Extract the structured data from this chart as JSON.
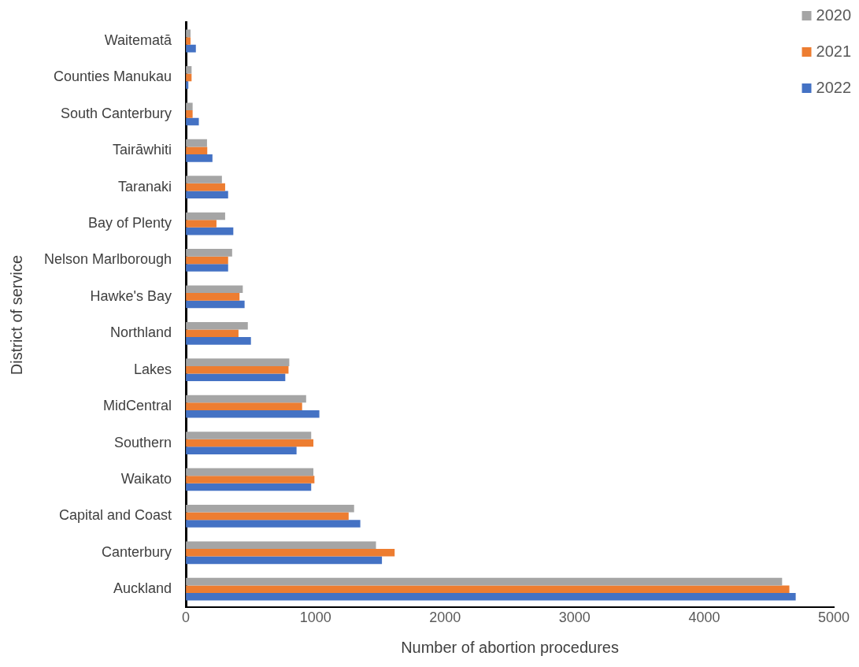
{
  "chart_data": {
    "type": "bar",
    "orientation": "horizontal",
    "xlabel": "Number of abortion procedures",
    "ylabel": "District of service",
    "categories": [
      "Waitematā",
      "Counties Manukau",
      "South Canterbury",
      "Tairāwhiti",
      "Taranaki",
      "Bay of Plenty",
      "Nelson Marlborough",
      "Hawke's Bay",
      "Northland",
      "Lakes",
      "MidCentral",
      "Southern",
      "Waikato",
      "Capital and Coast",
      "Canterbury",
      "Auckland"
    ],
    "series": [
      {
        "name": "2020",
        "color": "#a5a5a5",
        "values": [
          36,
          44,
          52,
          163,
          278,
          303,
          357,
          439,
          478,
          798,
          928,
          967,
          984,
          1298,
          1467,
          4601
        ]
      },
      {
        "name": "2021",
        "color": "#ed7d31",
        "values": [
          36,
          44,
          52,
          165,
          303,
          236,
          326,
          414,
          406,
          792,
          897,
          984,
          992,
          1256,
          1611,
          4657
        ]
      },
      {
        "name": "2022",
        "color": "#4472c4",
        "values": [
          77,
          19,
          100,
          205,
          326,
          366,
          326,
          453,
          502,
          767,
          1030,
          854,
          967,
          1346,
          1513,
          4706
        ]
      }
    ],
    "xlim": [
      0,
      5000
    ],
    "xticks": [
      0,
      1000,
      2000,
      3000,
      4000,
      5000
    ],
    "grid": false,
    "legend": "top right"
  }
}
